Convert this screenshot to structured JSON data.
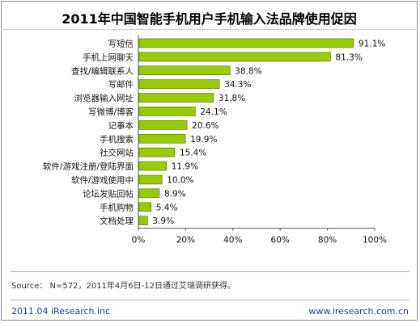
{
  "title": "2011年中国智能手机用户手机输入法品牌使用促因",
  "source": "Source： N=572，2011年4月6日-12日通过艾瑞调研获得。",
  "footer": {
    "left": "2011.04 iResearch.inc",
    "right": "www.iresearch.com.cn"
  },
  "chart_data": {
    "type": "bar",
    "orientation": "horizontal",
    "title": "2011年中国智能手机用户手机输入法品牌使用促因",
    "categories": [
      "写短信",
      "手机上网聊天",
      "查找/编辑联系人",
      "写邮件",
      "浏览器输入网址",
      "写微博/博客",
      "记事本",
      "手机搜索",
      "社交网站",
      "软件/游戏注册/登陆界面",
      "软件/游戏使用中",
      "论坛发贴回帖",
      "手机购物",
      "文档处理"
    ],
    "values": [
      91.1,
      81.3,
      38.8,
      34.3,
      31.8,
      24.1,
      20.6,
      19.9,
      15.4,
      11.9,
      10.0,
      8.9,
      5.4,
      3.9
    ],
    "value_labels": [
      "91.1%",
      "81.3%",
      "38.8%",
      "34.3%",
      "31.8%",
      "24.1%",
      "20.6%",
      "19.9%",
      "15.4%",
      "11.9%",
      "10.0%",
      "8.9%",
      "5.4%",
      "3.9%"
    ],
    "x_ticks": [
      "0%",
      "20%",
      "40%",
      "60%",
      "80%",
      "100%"
    ],
    "xlim": [
      0,
      100
    ],
    "grid": false,
    "legend": "none",
    "bar_color": "#99cc00",
    "bar_edge_color": "#556b00"
  }
}
